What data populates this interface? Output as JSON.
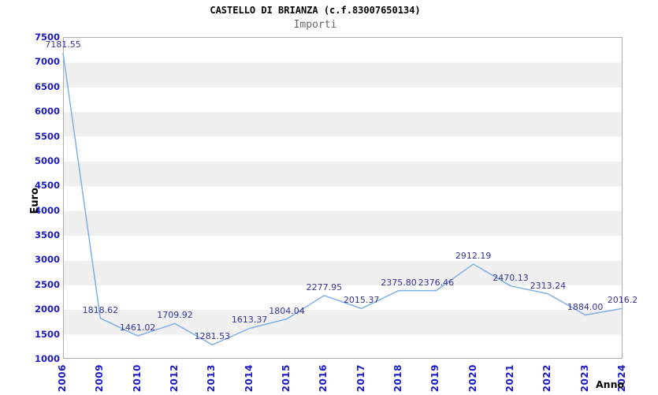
{
  "header": {
    "title": "CASTELLO DI BRIANZA (c.f.83007650134)",
    "subtitle": "Importi"
  },
  "chart_data": {
    "type": "line",
    "title": "CASTELLO DI BRIANZA (c.f.83007650134)",
    "subtitle": "Importi",
    "xlabel": "Anno",
    "ylabel": "Euro",
    "x": [
      "2006",
      "2009",
      "2010",
      "2012",
      "2013",
      "2014",
      "2015",
      "2016",
      "2017",
      "2018",
      "2019",
      "2020",
      "2021",
      "2022",
      "2023",
      "2024"
    ],
    "series": [
      {
        "name": "Importi",
        "values": [
          7181.55,
          1818.62,
          1461.02,
          1709.92,
          1281.53,
          1613.37,
          1804.04,
          2277.95,
          2015.37,
          2375.8,
          2376.46,
          2912.19,
          2470.13,
          2313.24,
          1884.0,
          2016.2
        ]
      }
    ],
    "point_labels": [
      "7181.55",
      "1818.62",
      "1461.02",
      "1709.92",
      "1281.53",
      "1613.37",
      "1804.04",
      "2277.95",
      "2015.37",
      "2375.80",
      "2376.46",
      "2912.19",
      "2470.13",
      "2313.24",
      "1884.00",
      "2016.2"
    ],
    "ylim": [
      1000,
      7500
    ],
    "ytick_step": 500,
    "ytick_labels": [
      "1000",
      "1500",
      "2000",
      "2500",
      "3000",
      "3500",
      "4000",
      "4500",
      "5000",
      "5500",
      "6000",
      "6500",
      "7000",
      "7500"
    ],
    "grid": "alternating-horizontal-bands",
    "legend": "none",
    "markers": "none",
    "colors": {
      "line": "#7db0e8",
      "tick_labels": "#1a1acc",
      "point_labels": "#333399",
      "band": "#f0f0f0",
      "plot_border": "#adadad",
      "title": "#000000",
      "subtitle": "#666666"
    }
  }
}
